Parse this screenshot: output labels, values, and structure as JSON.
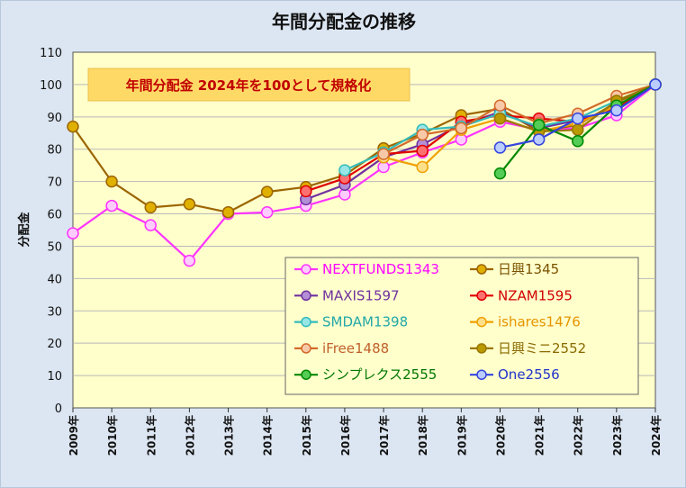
{
  "chart_data": {
    "type": "line",
    "title": "年間分配金の推移",
    "ylabel": "分配金",
    "xlabel": "",
    "ylim": [
      0,
      110
    ],
    "yticks": [
      0,
      10,
      20,
      30,
      40,
      50,
      60,
      70,
      80,
      90,
      100,
      110
    ],
    "categories": [
      "2009年",
      "2010年",
      "2011年",
      "2012年",
      "2013年",
      "2014年",
      "2015年",
      "2016年",
      "2017年",
      "2018年",
      "2019年",
      "2020年",
      "2021年",
      "2022年",
      "2023年",
      "2024年"
    ],
    "annotation": "年間分配金 2024年を100として規格化",
    "grid": true,
    "legend_position": "bottom-right",
    "background_color": "#ffffcc",
    "series": [
      {
        "name": "NEXTFUNDS1343",
        "color": "#ff33ff",
        "fill": "#ffccff",
        "text_color": "#ff00ff",
        "values": [
          54,
          62.5,
          56.5,
          45.5,
          60,
          60.5,
          62.5,
          66,
          74.5,
          79,
          83,
          88.5,
          86,
          86.5,
          90.5,
          100
        ]
      },
      {
        "name": "日興1345",
        "color": "#9c6500",
        "fill": "#e0b000",
        "text_color": "#7a5200",
        "values": [
          87,
          70,
          62,
          63,
          60.5,
          66.8,
          68.3,
          72,
          80.3,
          84.8,
          90.5,
          92.5,
          85.5,
          87.5,
          94.5,
          100
        ]
      },
      {
        "name": "MAXIS1597",
        "color": "#7030a0",
        "fill": "#b38fd6",
        "text_color": "#7030a0",
        "values": [
          null,
          null,
          null,
          null,
          null,
          null,
          64.5,
          69,
          77.5,
          81.5,
          87.5,
          91.5,
          86.5,
          89,
          92.5,
          100
        ]
      },
      {
        "name": "NZAM1595",
        "color": "#e00000",
        "fill": "#ff7070",
        "text_color": "#d00000",
        "values": [
          null,
          null,
          null,
          null,
          null,
          null,
          67,
          71,
          78.5,
          79.5,
          88.5,
          90.5,
          89.5,
          88.5,
          93,
          100
        ]
      },
      {
        "name": "SMDAM1398",
        "color": "#33bbbb",
        "fill": "#99e6e6",
        "text_color": "#22a8a8",
        "values": [
          null,
          null,
          null,
          null,
          null,
          null,
          null,
          73.5,
          79,
          86,
          87,
          91,
          87,
          89.5,
          95,
          100
        ]
      },
      {
        "name": "ishares1476",
        "color": "#f0a000",
        "fill": "#ffe08a",
        "text_color": "#e69500",
        "values": [
          null,
          null,
          null,
          null,
          null,
          null,
          null,
          null,
          77.5,
          74.5,
          86,
          89.5,
          85.5,
          88,
          93.5,
          100
        ]
      },
      {
        "name": "iFree1488",
        "color": "#d26a2a",
        "fill": "#f8c9a8",
        "text_color": "#c0602a",
        "values": [
          null,
          null,
          null,
          null,
          null,
          null,
          null,
          null,
          78.5,
          84.5,
          86.5,
          93.5,
          88,
          91,
          96.5,
          100
        ]
      },
      {
        "name": "日興ミニ2552",
        "color": "#997700",
        "fill": "#bb9900",
        "text_color": "#8a6a00",
        "values": [
          null,
          null,
          null,
          null,
          null,
          null,
          null,
          null,
          null,
          null,
          null,
          89.5,
          85.5,
          86,
          95,
          100
        ]
      },
      {
        "name": "シンプレクス2555",
        "color": "#008800",
        "fill": "#55cc55",
        "text_color": "#007700",
        "values": [
          null,
          null,
          null,
          null,
          null,
          null,
          null,
          null,
          null,
          null,
          null,
          72.5,
          87.5,
          82.5,
          93.5,
          100
        ]
      },
      {
        "name": "One2556",
        "color": "#3344dd",
        "fill": "#bbccff",
        "text_color": "#2233cc",
        "values": [
          null,
          null,
          null,
          null,
          null,
          null,
          null,
          null,
          null,
          null,
          null,
          80.5,
          83,
          89.5,
          92,
          100
        ]
      }
    ]
  }
}
